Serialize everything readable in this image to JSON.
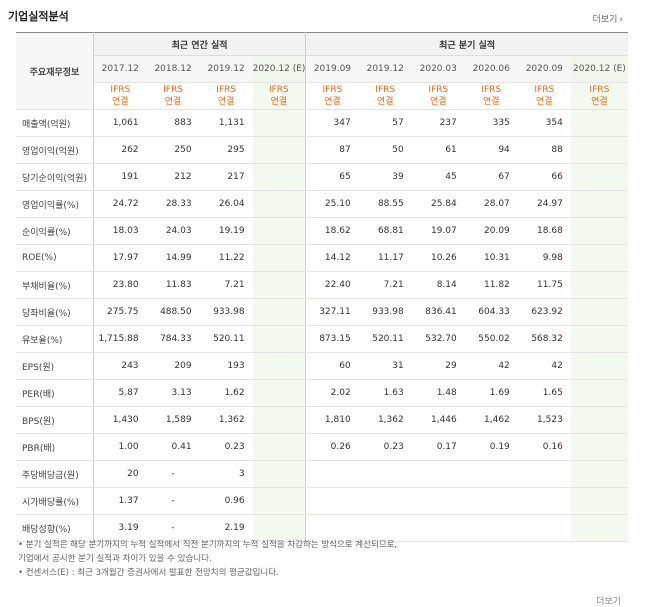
{
  "title": "기업실적분석",
  "more_label": "더보기",
  "more_icon": "chevron-right-icon",
  "table": {
    "row_header": "주요재무정보",
    "group_annual": "최근 연간 실적",
    "group_quarter": "최근 분기 실적",
    "periods": [
      "2017.12",
      "2018.12",
      "2019.12",
      "2020.12 (E)",
      "2019.09",
      "2019.12",
      "2020.03",
      "2020.06",
      "2020.09",
      "2020.12 (E)"
    ],
    "ifrs_top": "IFRS",
    "ifrs_bottom": "연결",
    "rows": [
      {
        "label": "매출액(억원)",
        "values": [
          "1,061",
          "883",
          "1,131",
          "",
          "347",
          "57",
          "237",
          "335",
          "354",
          ""
        ]
      },
      {
        "label": "영업이익(억원)",
        "values": [
          "262",
          "250",
          "295",
          "",
          "87",
          "50",
          "61",
          "94",
          "88",
          ""
        ]
      },
      {
        "label": "당기순이익(억원)",
        "values": [
          "191",
          "212",
          "217",
          "",
          "65",
          "39",
          "45",
          "67",
          "66",
          ""
        ]
      },
      {
        "label": "영업이익률(%)",
        "values": [
          "24.72",
          "28.33",
          "26.04",
          "",
          "25.10",
          "88.55",
          "25.84",
          "28.07",
          "24.97",
          ""
        ]
      },
      {
        "label": "순이익률(%)",
        "values": [
          "18.03",
          "24.03",
          "19.19",
          "",
          "18.62",
          "68.81",
          "19.07",
          "20.09",
          "18.68",
          ""
        ]
      },
      {
        "label": "ROE(%)",
        "values": [
          "17.97",
          "14.99",
          "11.22",
          "",
          "14.12",
          "11.17",
          "10.26",
          "10.31",
          "9.98",
          ""
        ]
      },
      {
        "label": "부채비율(%)",
        "values": [
          "23.80",
          "11.83",
          "7.21",
          "",
          "22.40",
          "7.21",
          "8.14",
          "11.82",
          "11.75",
          ""
        ]
      },
      {
        "label": "당좌비율(%)",
        "values": [
          "275.75",
          "488.50",
          "933.98",
          "",
          "327.11",
          "933.98",
          "836.41",
          "604.33",
          "623.92",
          ""
        ]
      },
      {
        "label": "유보율(%)",
        "values": [
          "1,715.88",
          "784.33",
          "520.11",
          "",
          "873.15",
          "520.11",
          "532.70",
          "550.02",
          "568.32",
          ""
        ]
      },
      {
        "label": "EPS(원)",
        "values": [
          "243",
          "209",
          "193",
          "",
          "60",
          "31",
          "29",
          "42",
          "42",
          ""
        ]
      },
      {
        "label": "PER(배)",
        "values": [
          "5.87",
          "3.13",
          "1.62",
          "",
          "2.02",
          "1.63",
          "1.48",
          "1.69",
          "1.65",
          ""
        ]
      },
      {
        "label": "BPS(원)",
        "values": [
          "1,430",
          "1,589",
          "1,362",
          "",
          "1,810",
          "1,362",
          "1,446",
          "1,462",
          "1,523",
          ""
        ]
      },
      {
        "label": "PBR(배)",
        "values": [
          "1.00",
          "0.41",
          "0.23",
          "",
          "0.26",
          "0.23",
          "0.17",
          "0.19",
          "0.16",
          ""
        ]
      },
      {
        "label": "주당배당금(원)",
        "values": [
          "20",
          "-",
          "3",
          "",
          "",
          "",
          "",
          "",
          "",
          ""
        ]
      },
      {
        "label": "시가배당률(%)",
        "values": [
          "1.37",
          "-",
          "0.96",
          "",
          "",
          "",
          "",
          "",
          "",
          ""
        ]
      },
      {
        "label": "배당성향(%)",
        "values": [
          "3.19",
          "-",
          "2.19",
          "",
          "",
          "",
          "",
          "",
          "",
          ""
        ]
      }
    ]
  },
  "notes": [
    "• 분기 실적은 해당 분기까지의 누적 실적에서 직전 분기까지의 누적 실적을 차감하는 방식으로 계산되므로,",
    "  기업에서 공시한 분기 실적과 차이가 있을 수 있습니다.",
    "• 컨센서스(E) : 최근 3개월간 증권사에서 발표한 전망치의 평균값입니다."
  ],
  "footer_text": "더보기"
}
